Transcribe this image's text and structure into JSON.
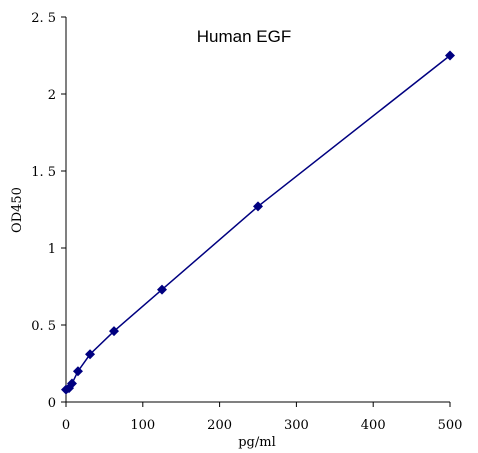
{
  "chart_data": {
    "type": "scatter",
    "title": "Human EGF",
    "xlabel": "pg/ml",
    "ylabel": "OD450",
    "xlim": [
      0,
      500
    ],
    "ylim": [
      0,
      2.5
    ],
    "x_ticks": [
      0,
      100,
      200,
      300,
      400,
      500
    ],
    "y_ticks": [
      0,
      0.5,
      1,
      1.5,
      2,
      2.5
    ],
    "x_tick_labels": [
      "0",
      "100",
      "200",
      "300",
      "400",
      "500"
    ],
    "y_tick_labels": [
      "0",
      "0. 5",
      "1",
      "1. 5",
      "2",
      "2. 5"
    ],
    "grid": false,
    "legend": "none",
    "marker": "diamond",
    "series": [
      {
        "color": "#000080",
        "points": [
          {
            "x": 0,
            "y": 0.08
          },
          {
            "x": 3.9,
            "y": 0.09
          },
          {
            "x": 7.8,
            "y": 0.12
          },
          {
            "x": 15.6,
            "y": 0.2
          },
          {
            "x": 31.3,
            "y": 0.31
          },
          {
            "x": 62.5,
            "y": 0.46
          },
          {
            "x": 125,
            "y": 0.73
          },
          {
            "x": 250,
            "y": 1.27
          },
          {
            "x": 500,
            "y": 2.25
          }
        ]
      }
    ]
  }
}
